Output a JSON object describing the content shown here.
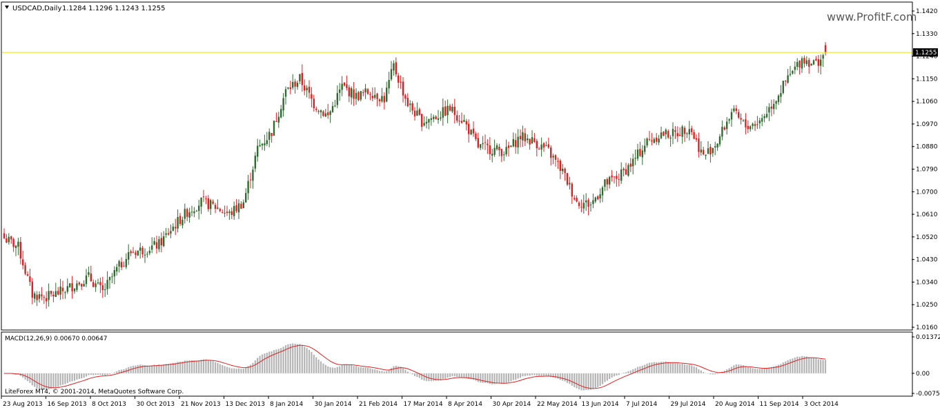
{
  "chart_data": [
    {
      "type": "candlestick",
      "symbol_header": "USDCAD,Daily",
      "ohlc_header": "1.1284 1.1296 1.1243 1.1255",
      "watermark": "www.ProfitF.com",
      "current_price_label": "1.1255",
      "current_price": 1.1255,
      "ylim": [
        1.016,
        1.142
      ],
      "y_ticks": [
        "1.1420",
        "1.1330",
        "1.1240",
        "1.1150",
        "1.1060",
        "1.0970",
        "1.0880",
        "1.0790",
        "1.0700",
        "1.0610",
        "1.0520",
        "1.0430",
        "1.0340",
        "1.0250",
        "1.0160"
      ],
      "x_ticks": [
        "23 Aug 2013",
        "16 Sep 2013",
        "8 Oct 2013",
        "30 Oct 2013",
        "21 Nov 2013",
        "13 Dec 2013",
        "8 Jan 2014",
        "30 Jan 2014",
        "21 Feb 2014",
        "17 Mar 2014",
        "8 Apr 2014",
        "30 Apr 2014",
        "22 May 2014",
        "13 Jun 2014",
        "7 Jul 2014",
        "29 Jul 2014",
        "20 Aug 2014",
        "11 Sep 2014",
        "3 Oct 2014"
      ],
      "bull_color": "#2e6b2e",
      "bear_color": "#e02020",
      "price_line_color": "#e8e400",
      "close_path": [
        [
          0,
          1.0515
        ],
        [
          6,
          1.048
        ],
        [
          12,
          1.029
        ],
        [
          18,
          1.028
        ],
        [
          24,
          1.03
        ],
        [
          30,
          1.033
        ],
        [
          36,
          1.036
        ],
        [
          42,
          1.03
        ],
        [
          48,
          1.039
        ],
        [
          54,
          1.046
        ],
        [
          60,
          1.047
        ],
        [
          66,
          1.049
        ],
        [
          72,
          1.056
        ],
        [
          78,
          1.062
        ],
        [
          84,
          1.066
        ],
        [
          90,
          1.064
        ],
        [
          96,
          1.061
        ],
        [
          102,
          1.066
        ],
        [
          108,
          1.087
        ],
        [
          114,
          1.094
        ],
        [
          120,
          1.11
        ],
        [
          126,
          1.115
        ],
        [
          132,
          1.105
        ],
        [
          138,
          1.1
        ],
        [
          144,
          1.112
        ],
        [
          150,
          1.108
        ],
        [
          156,
          1.11
        ],
        [
          162,
          1.107
        ],
        [
          166,
          1.12
        ],
        [
          172,
          1.105
        ],
        [
          178,
          1.098
        ],
        [
          184,
          1.1
        ],
        [
          190,
          1.103
        ],
        [
          196,
          1.098
        ],
        [
          202,
          1.088
        ],
        [
          208,
          1.087
        ],
        [
          214,
          1.086
        ],
        [
          220,
          1.092
        ],
        [
          226,
          1.09
        ],
        [
          232,
          1.086
        ],
        [
          238,
          1.078
        ],
        [
          244,
          1.066
        ],
        [
          250,
          1.065
        ],
        [
          256,
          1.073
        ],
        [
          262,
          1.076
        ],
        [
          268,
          1.082
        ],
        [
          274,
          1.09
        ],
        [
          280,
          1.093
        ],
        [
          286,
          1.093
        ],
        [
          292,
          1.096
        ],
        [
          298,
          1.084
        ],
        [
          304,
          1.09
        ],
        [
          310,
          1.102
        ],
        [
          316,
          1.096
        ],
        [
          322,
          1.098
        ],
        [
          328,
          1.106
        ],
        [
          334,
          1.115
        ],
        [
          340,
          1.123
        ],
        [
          346,
          1.121
        ],
        [
          350,
          1.1255
        ]
      ],
      "last_index": 350
    },
    {
      "type": "macd",
      "label": "MACD(12,26,9) 0.00670 0.00647",
      "ylim": [
        -0.00756,
        0.01372
      ],
      "y_ticks": [
        "0.01372",
        "0.00",
        "-0.00756"
      ],
      "histogram_color": "#b4b4b4",
      "signal_color": "#e02020"
    }
  ],
  "footer": "LiteForex MT4, © 2001-2014, MetaQuotes Software Corp."
}
